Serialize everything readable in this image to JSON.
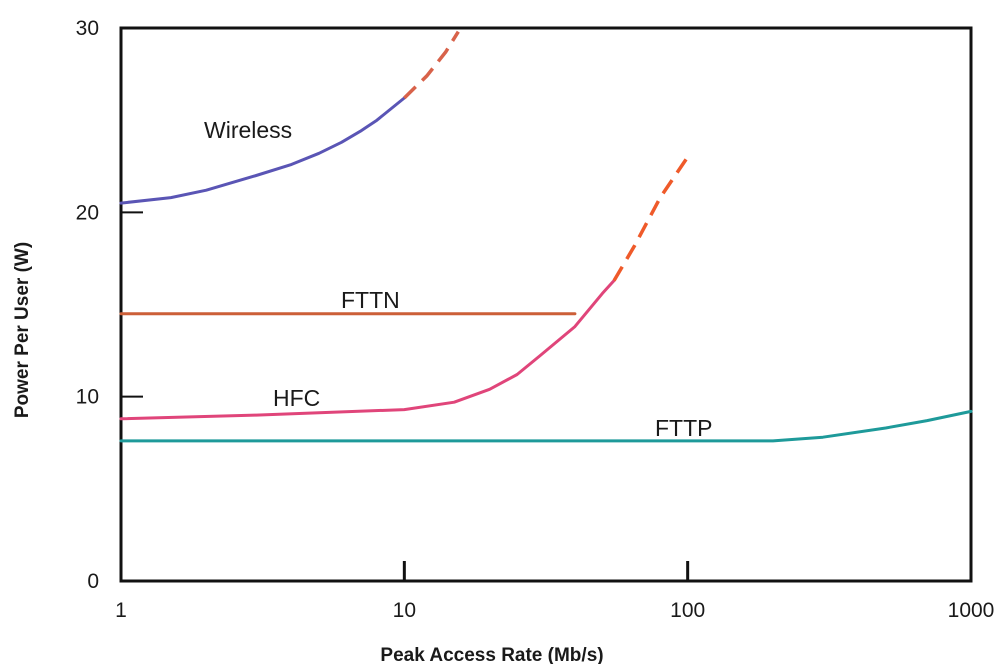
{
  "chart_data": {
    "type": "line",
    "title": "",
    "xlabel": "Peak Access Rate (Mb/s)",
    "ylabel": "Power Per User (W)",
    "xscale": "log",
    "xlim": [
      1,
      1000
    ],
    "ylim": [
      0,
      30
    ],
    "xticks": [
      1,
      10,
      100,
      1000
    ],
    "xtick_labels": [
      "1",
      "10",
      "100",
      "1000"
    ],
    "yticks": [
      0,
      10,
      20,
      30
    ],
    "ytick_labels": [
      "0",
      "10",
      "20",
      "30"
    ],
    "grid": false,
    "legend": "none",
    "series": [
      {
        "name": "Wireless",
        "color": "#5a55b5",
        "extrapolated_color": "#d8624a",
        "points": [
          [
            1,
            20.5
          ],
          [
            1.5,
            20.8
          ],
          [
            2,
            21.2
          ],
          [
            3,
            22.0
          ],
          [
            4,
            22.6
          ],
          [
            5,
            23.2
          ],
          [
            6,
            23.8
          ],
          [
            7,
            24.4
          ],
          [
            8,
            25.0
          ],
          [
            10,
            26.2
          ]
        ],
        "extrapolated_points": [
          [
            10,
            26.2
          ],
          [
            12,
            27.4
          ],
          [
            14,
            28.7
          ],
          [
            15.5,
            29.8
          ]
        ]
      },
      {
        "name": "FTTN",
        "color": "#cc5f38",
        "points": [
          [
            1,
            14.5
          ],
          [
            10,
            14.5
          ],
          [
            40,
            14.5
          ]
        ]
      },
      {
        "name": "HFC",
        "color": "#e0457a",
        "extrapolated_color": "#ef5a2a",
        "points": [
          [
            1,
            8.8
          ],
          [
            3,
            9.0
          ],
          [
            10,
            9.3
          ],
          [
            15,
            9.7
          ],
          [
            20,
            10.4
          ],
          [
            25,
            11.2
          ],
          [
            30,
            12.2
          ],
          [
            40,
            13.8
          ],
          [
            50,
            15.6
          ],
          [
            55,
            16.3
          ]
        ],
        "extrapolated_points": [
          [
            55,
            16.3
          ],
          [
            65,
            18.2
          ],
          [
            80,
            20.8
          ],
          [
            100,
            23.0
          ]
        ]
      },
      {
        "name": "FTTP",
        "color": "#1e9a9a",
        "points": [
          [
            1,
            7.6
          ],
          [
            100,
            7.6
          ],
          [
            200,
            7.6
          ],
          [
            300,
            7.8
          ],
          [
            500,
            8.3
          ],
          [
            700,
            8.7
          ],
          [
            1000,
            9.2
          ]
        ]
      }
    ]
  }
}
